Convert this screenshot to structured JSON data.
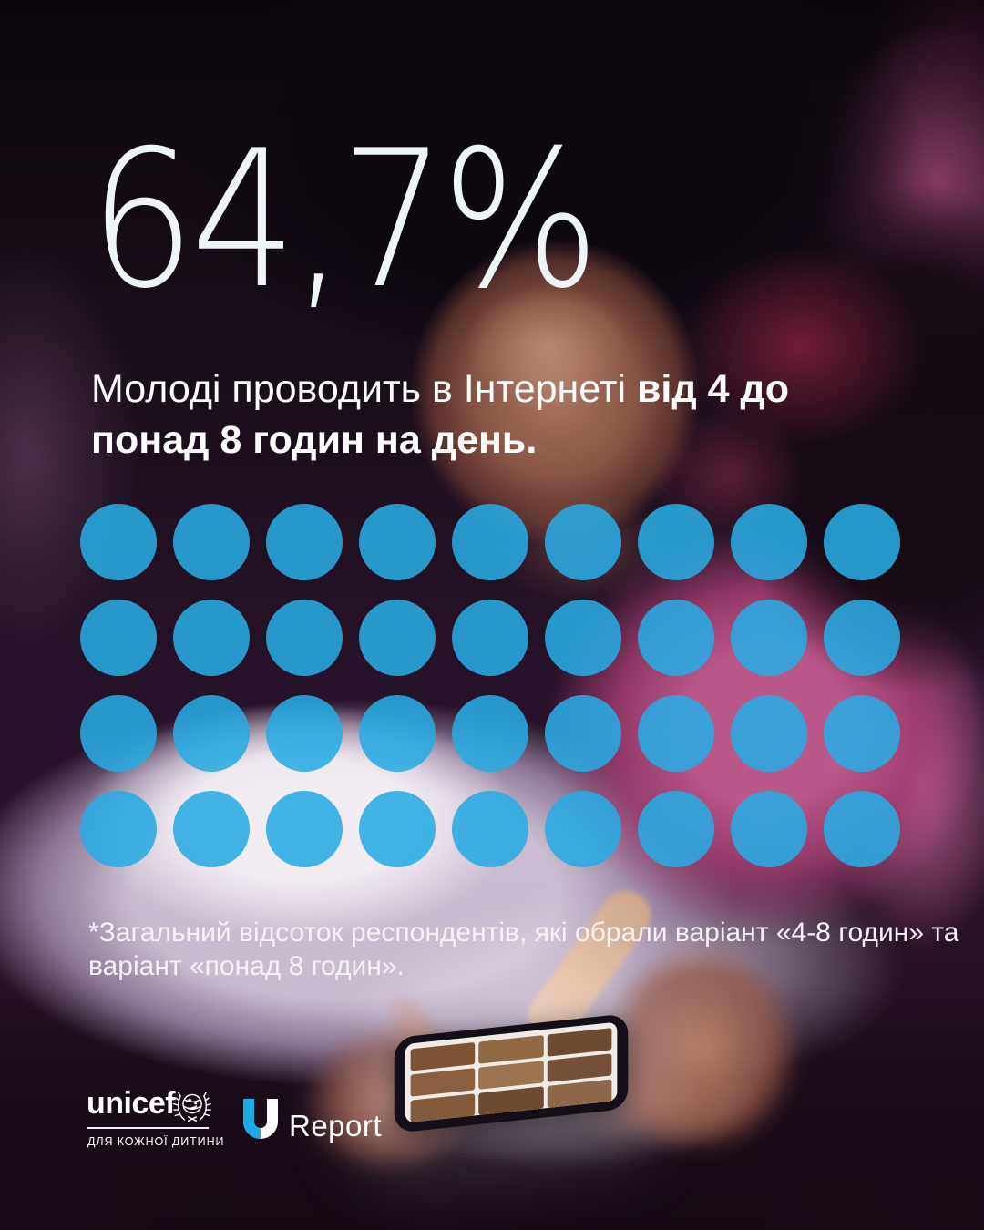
{
  "headline": {
    "value": "64,7%"
  },
  "subtitle": {
    "line1_regular": "Молоді проводить в Інтернеті ",
    "line1_bold": "від 4 до",
    "line2_bold": "понад 8 годин на день."
  },
  "footnote": {
    "line1": "*Загальний відсоток респондентів, які обрали варіант «4-8 годин» та",
    "line2": "варіант «понад 8 годин»."
  },
  "chart_data": {
    "type": "pictogram",
    "title": "64,7%",
    "subtitle": "Молоді проводить в Інтернеті від 4 до понад 8 годин на день.",
    "value_percent": 64.7,
    "rows": 4,
    "columns": 9,
    "total_dots": 36,
    "dot_color": "#29ABE2",
    "dot_opacity": 0.88,
    "annotation": "*Загальний відсоток респондентів, які обрали варіант «4-8 годин» та варіант «понад 8 годин».",
    "legend_position": "none"
  },
  "logos": {
    "unicef": {
      "wordmark": "unicef",
      "tagline": "для кожної дитини"
    },
    "ureport": {
      "u": "U",
      "text": "Report"
    }
  },
  "colors": {
    "accent_blue": "#29ABE2",
    "unicef_blue": "#1CABE2",
    "text": "#FFFFFF"
  }
}
